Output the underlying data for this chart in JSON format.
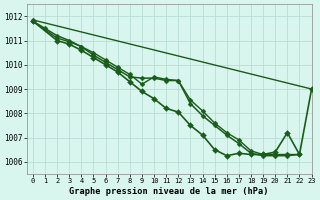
{
  "background_color": "#d8f5ee",
  "grid_color": "#b8ddd4",
  "line_color": "#1a5c1a",
  "title": "Graphe pression niveau de la mer (hPa)",
  "xlim": [
    -0.5,
    23
  ],
  "ylim": [
    1005.5,
    1012.5
  ],
  "yticks": [
    1006,
    1007,
    1008,
    1009,
    1010,
    1011,
    1012
  ],
  "xticks": [
    0,
    1,
    2,
    3,
    4,
    5,
    6,
    7,
    8,
    9,
    10,
    11,
    12,
    13,
    14,
    15,
    16,
    17,
    18,
    19,
    20,
    21,
    22,
    23
  ],
  "series": [
    {
      "x": [
        0,
        1,
        2,
        3,
        4,
        5,
        6,
        7,
        8,
        9,
        10,
        11,
        12,
        13,
        14,
        15,
        16,
        17,
        18,
        19,
        20,
        21,
        22,
        23
      ],
      "y": [
        1011.8,
        1011.5,
        1011.2,
        1011.0,
        1010.75,
        1010.4,
        1010.1,
        1009.8,
        1009.5,
        1009.45,
        1009.45,
        1009.35,
        1009.35,
        1008.4,
        1007.9,
        1007.5,
        1007.1,
        1006.75,
        1006.35,
        1006.25,
        1006.25,
        1006.25,
        1006.3,
        null
      ],
      "has_markers": true,
      "linewidth": 1.1,
      "markersize": 2.5
    },
    {
      "x": [
        0,
        23
      ],
      "y": [
        1011.85,
        1009.0
      ],
      "has_markers": true,
      "linewidth": 1.0,
      "markersize": 2.5
    },
    {
      "x": [
        0,
        2,
        3,
        4,
        5,
        6,
        7,
        8,
        9,
        10,
        11,
        12,
        13,
        14,
        15,
        16,
        17,
        18,
        19,
        20,
        21,
        22,
        23
      ],
      "y": [
        1011.8,
        1011.1,
        1010.95,
        1010.75,
        1010.5,
        1010.2,
        1009.9,
        1009.6,
        1009.2,
        1009.5,
        1009.4,
        1009.35,
        1008.55,
        1008.1,
        1007.6,
        1007.2,
        1006.9,
        1006.45,
        1006.3,
        1006.3,
        1006.3,
        1006.3,
        null
      ],
      "has_markers": true,
      "linewidth": 1.0,
      "markersize": 2.5
    },
    {
      "x": [
        0,
        2,
        3,
        4,
        5,
        6,
        7,
        8,
        9,
        10,
        11,
        12,
        13,
        14,
        15,
        16,
        17,
        18,
        19,
        20,
        21,
        22,
        23
      ],
      "y": [
        1011.8,
        1011.0,
        1010.85,
        1010.6,
        1010.3,
        1010.0,
        1009.7,
        1009.3,
        1008.9,
        1008.6,
        1008.2,
        1008.05,
        1007.5,
        1007.1,
        1006.5,
        1006.25,
        1006.35,
        1006.3,
        1006.3,
        1006.4,
        1007.2,
        1006.3,
        1009.0
      ],
      "has_markers": true,
      "linewidth": 1.2,
      "markersize": 3.0
    }
  ]
}
